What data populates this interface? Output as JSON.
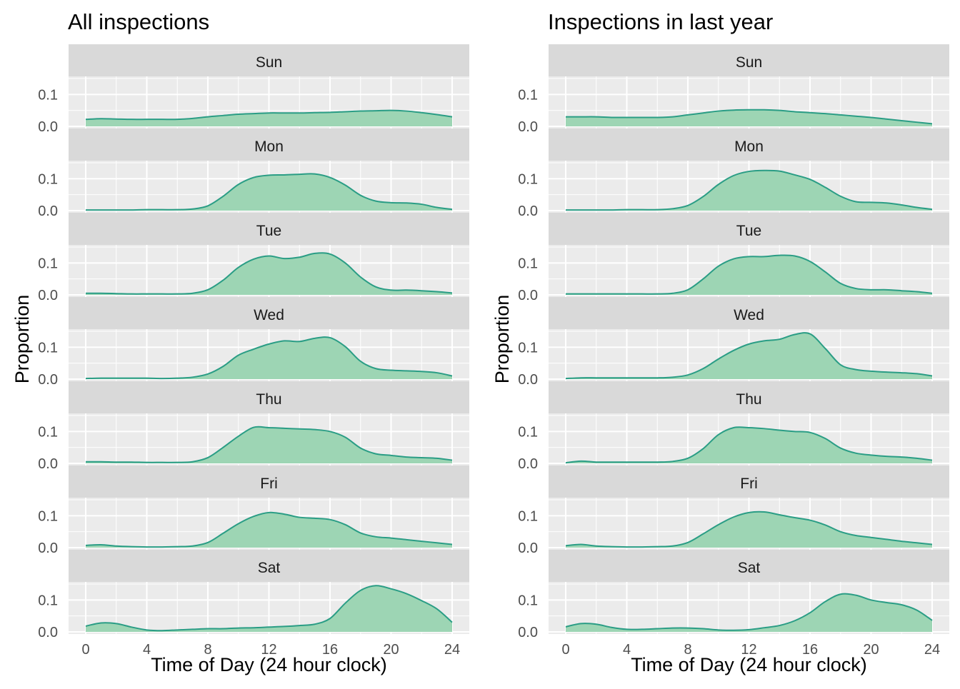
{
  "colors": {
    "fill": "#9dd5b4",
    "line": "#2a9d85",
    "strip": "#d9d9d9",
    "panel": "#ebebeb",
    "grid": "#ffffff",
    "tick_text": "#4d4d4d",
    "title_text": "#000000",
    "strip_text": "#1a1a1a"
  },
  "chart_data": [
    {
      "type": "area",
      "title": "All inspections",
      "xlabel": "Time of Day (24 hour clock)",
      "ylabel": "Proportion",
      "xlim": [
        0,
        24
      ],
      "ylim": [
        0,
        0.15
      ],
      "xticks": [
        0,
        4,
        8,
        12,
        16,
        20,
        24
      ],
      "xtick_labels": [
        "0",
        "4",
        "8",
        "12",
        "16",
        "20",
        "24"
      ],
      "yticks": [
        0,
        0.1
      ],
      "ytick_labels": [
        "0.0",
        "0.1"
      ],
      "grid": true,
      "facets": [
        {
          "label": "Sun",
          "x": [
            0,
            1,
            2,
            3,
            4,
            5,
            6,
            7,
            8,
            9,
            10,
            11,
            12,
            13,
            14,
            15,
            16,
            17,
            18,
            19,
            20,
            21,
            22,
            23,
            24
          ],
          "y": [
            0.022,
            0.024,
            0.023,
            0.022,
            0.022,
            0.022,
            0.022,
            0.025,
            0.03,
            0.034,
            0.038,
            0.04,
            0.042,
            0.042,
            0.042,
            0.043,
            0.044,
            0.046,
            0.048,
            0.049,
            0.05,
            0.048,
            0.043,
            0.037,
            0.03
          ]
        },
        {
          "label": "Mon",
          "x": [
            0,
            1,
            2,
            3,
            4,
            5,
            6,
            7,
            8,
            9,
            10,
            11,
            12,
            13,
            14,
            15,
            16,
            17,
            18,
            19,
            20,
            21,
            22,
            23,
            24
          ],
          "y": [
            0.002,
            0.002,
            0.002,
            0.002,
            0.003,
            0.003,
            0.003,
            0.005,
            0.015,
            0.045,
            0.082,
            0.104,
            0.111,
            0.112,
            0.114,
            0.115,
            0.104,
            0.08,
            0.048,
            0.03,
            0.025,
            0.024,
            0.02,
            0.01,
            0.004
          ]
        },
        {
          "label": "Tue",
          "x": [
            0,
            1,
            2,
            3,
            4,
            5,
            6,
            7,
            8,
            9,
            10,
            11,
            12,
            13,
            14,
            15,
            16,
            17,
            18,
            19,
            20,
            21,
            22,
            23,
            24
          ],
          "y": [
            0.005,
            0.005,
            0.004,
            0.003,
            0.003,
            0.003,
            0.003,
            0.005,
            0.016,
            0.046,
            0.086,
            0.112,
            0.122,
            0.114,
            0.118,
            0.13,
            0.128,
            0.1,
            0.056,
            0.025,
            0.015,
            0.015,
            0.013,
            0.01,
            0.006
          ]
        },
        {
          "label": "Wed",
          "x": [
            0,
            1,
            2,
            3,
            4,
            5,
            6,
            7,
            8,
            9,
            10,
            11,
            12,
            13,
            14,
            15,
            16,
            17,
            18,
            19,
            20,
            21,
            22,
            23,
            24
          ],
          "y": [
            0.002,
            0.003,
            0.003,
            0.003,
            0.003,
            0.002,
            0.003,
            0.006,
            0.016,
            0.04,
            0.075,
            0.094,
            0.11,
            0.12,
            0.118,
            0.128,
            0.13,
            0.102,
            0.056,
            0.033,
            0.028,
            0.026,
            0.024,
            0.02,
            0.01
          ]
        },
        {
          "label": "Thu",
          "x": [
            0,
            1,
            2,
            3,
            4,
            5,
            6,
            7,
            8,
            9,
            10,
            11,
            12,
            13,
            14,
            15,
            16,
            17,
            18,
            19,
            20,
            21,
            22,
            23,
            24
          ],
          "y": [
            0.005,
            0.005,
            0.004,
            0.004,
            0.003,
            0.003,
            0.003,
            0.005,
            0.018,
            0.05,
            0.085,
            0.113,
            0.112,
            0.11,
            0.108,
            0.106,
            0.1,
            0.082,
            0.048,
            0.03,
            0.025,
            0.02,
            0.018,
            0.016,
            0.01
          ]
        },
        {
          "label": "Fri",
          "x": [
            0,
            1,
            2,
            3,
            4,
            5,
            6,
            7,
            8,
            9,
            10,
            11,
            12,
            13,
            14,
            15,
            16,
            17,
            18,
            19,
            20,
            21,
            22,
            23,
            24
          ],
          "y": [
            0.007,
            0.009,
            0.005,
            0.003,
            0.002,
            0.002,
            0.003,
            0.005,
            0.016,
            0.045,
            0.075,
            0.098,
            0.11,
            0.105,
            0.095,
            0.092,
            0.088,
            0.072,
            0.046,
            0.034,
            0.03,
            0.025,
            0.02,
            0.015,
            0.01
          ]
        },
        {
          "label": "Sat",
          "x": [
            0,
            1,
            2,
            3,
            4,
            5,
            6,
            7,
            8,
            9,
            10,
            11,
            12,
            13,
            14,
            15,
            16,
            17,
            18,
            19,
            20,
            21,
            22,
            23,
            24
          ],
          "y": [
            0.018,
            0.028,
            0.026,
            0.015,
            0.006,
            0.004,
            0.006,
            0.008,
            0.01,
            0.01,
            0.012,
            0.013,
            0.015,
            0.017,
            0.02,
            0.024,
            0.042,
            0.09,
            0.13,
            0.145,
            0.135,
            0.12,
            0.098,
            0.072,
            0.03
          ]
        }
      ]
    },
    {
      "type": "area",
      "title": "Inspections in last year",
      "xlabel": "Time of Day (24 hour clock)",
      "ylabel": "Proportion",
      "xlim": [
        0,
        24
      ],
      "ylim": [
        0,
        0.15
      ],
      "xticks": [
        0,
        4,
        8,
        12,
        16,
        20,
        24
      ],
      "xtick_labels": [
        "0",
        "4",
        "8",
        "12",
        "16",
        "20",
        "24"
      ],
      "yticks": [
        0,
        0.1
      ],
      "ytick_labels": [
        "0.0",
        "0.1"
      ],
      "grid": true,
      "facets": [
        {
          "label": "Sun",
          "x": [
            0,
            1,
            2,
            3,
            4,
            5,
            6,
            7,
            8,
            9,
            10,
            11,
            12,
            13,
            14,
            15,
            16,
            17,
            18,
            19,
            20,
            21,
            22,
            23,
            24
          ],
          "y": [
            0.03,
            0.03,
            0.03,
            0.028,
            0.028,
            0.028,
            0.028,
            0.03,
            0.036,
            0.042,
            0.048,
            0.051,
            0.052,
            0.052,
            0.05,
            0.046,
            0.043,
            0.04,
            0.036,
            0.032,
            0.028,
            0.023,
            0.018,
            0.013,
            0.008
          ]
        },
        {
          "label": "Mon",
          "x": [
            0,
            1,
            2,
            3,
            4,
            5,
            6,
            7,
            8,
            9,
            10,
            11,
            12,
            13,
            14,
            15,
            16,
            17,
            18,
            19,
            20,
            21,
            22,
            23,
            24
          ],
          "y": [
            0.002,
            0.002,
            0.002,
            0.002,
            0.003,
            0.003,
            0.003,
            0.006,
            0.016,
            0.044,
            0.082,
            0.11,
            0.123,
            0.126,
            0.124,
            0.112,
            0.098,
            0.073,
            0.045,
            0.028,
            0.026,
            0.024,
            0.018,
            0.01,
            0.004
          ]
        },
        {
          "label": "Tue",
          "x": [
            0,
            1,
            2,
            3,
            4,
            5,
            6,
            7,
            8,
            9,
            10,
            11,
            12,
            13,
            14,
            15,
            16,
            17,
            18,
            19,
            20,
            21,
            22,
            23,
            24
          ],
          "y": [
            0.003,
            0.003,
            0.003,
            0.003,
            0.003,
            0.003,
            0.003,
            0.005,
            0.016,
            0.05,
            0.09,
            0.113,
            0.12,
            0.12,
            0.124,
            0.122,
            0.105,
            0.072,
            0.036,
            0.02,
            0.016,
            0.016,
            0.013,
            0.01,
            0.005
          ]
        },
        {
          "label": "Wed",
          "x": [
            0,
            1,
            2,
            3,
            4,
            5,
            6,
            7,
            8,
            9,
            10,
            11,
            12,
            13,
            14,
            15,
            16,
            17,
            18,
            19,
            20,
            21,
            22,
            23,
            24
          ],
          "y": [
            0.002,
            0.004,
            0.004,
            0.004,
            0.004,
            0.004,
            0.004,
            0.006,
            0.013,
            0.033,
            0.063,
            0.09,
            0.11,
            0.12,
            0.125,
            0.14,
            0.142,
            0.096,
            0.045,
            0.03,
            0.025,
            0.022,
            0.02,
            0.017,
            0.01
          ]
        },
        {
          "label": "Thu",
          "x": [
            0,
            1,
            2,
            3,
            4,
            5,
            6,
            7,
            8,
            9,
            10,
            11,
            12,
            13,
            14,
            15,
            16,
            17,
            18,
            19,
            20,
            21,
            22,
            23,
            24
          ],
          "y": [
            0.002,
            0.007,
            0.004,
            0.004,
            0.004,
            0.004,
            0.004,
            0.006,
            0.016,
            0.046,
            0.09,
            0.112,
            0.112,
            0.109,
            0.104,
            0.1,
            0.097,
            0.078,
            0.048,
            0.032,
            0.026,
            0.022,
            0.02,
            0.016,
            0.01
          ]
        },
        {
          "label": "Fri",
          "x": [
            0,
            1,
            2,
            3,
            4,
            5,
            6,
            7,
            8,
            9,
            10,
            11,
            12,
            13,
            14,
            15,
            16,
            17,
            18,
            19,
            20,
            21,
            22,
            23,
            24
          ],
          "y": [
            0.006,
            0.01,
            0.005,
            0.003,
            0.002,
            0.002,
            0.003,
            0.005,
            0.016,
            0.043,
            0.072,
            0.096,
            0.11,
            0.112,
            0.103,
            0.094,
            0.086,
            0.071,
            0.05,
            0.038,
            0.032,
            0.026,
            0.02,
            0.015,
            0.01
          ]
        },
        {
          "label": "Sat",
          "x": [
            0,
            1,
            2,
            3,
            4,
            5,
            6,
            7,
            8,
            9,
            10,
            11,
            12,
            13,
            14,
            15,
            16,
            17,
            18,
            19,
            20,
            21,
            22,
            23,
            24
          ],
          "y": [
            0.016,
            0.026,
            0.024,
            0.014,
            0.008,
            0.008,
            0.01,
            0.012,
            0.012,
            0.01,
            0.006,
            0.005,
            0.007,
            0.013,
            0.02,
            0.035,
            0.06,
            0.095,
            0.118,
            0.115,
            0.1,
            0.092,
            0.085,
            0.068,
            0.036
          ]
        }
      ]
    }
  ]
}
